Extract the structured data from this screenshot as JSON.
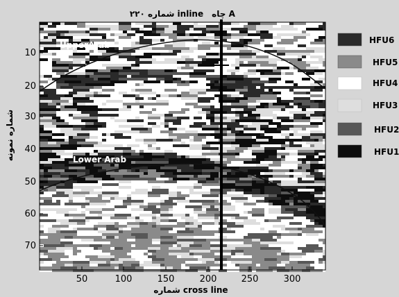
{
  "figure": {
    "top_title_left": "شماره ۲۲۰ inline",
    "top_title_right": "چاه A",
    "x_axis_label": "شماره cross line",
    "y_axis_label": "شماره نمونه",
    "x_ticks": [
      "50",
      "100",
      "150",
      "200",
      "250",
      "300"
    ],
    "y_ticks": [
      "10",
      "20",
      "30",
      "40",
      "50",
      "60",
      "70"
    ],
    "horizon_upper_label": "UpperArab",
    "horizon_lower_label": "Lower Arab"
  },
  "legend": [
    {
      "label": "HFU6",
      "color": "#2a2a2a"
    },
    {
      "label": "HFU5",
      "color": "#8a8a8a"
    },
    {
      "label": "HFU4",
      "color": "#ffffff"
    },
    {
      "label": "HFU3",
      "color": "#dedede"
    },
    {
      "label": "HFU2",
      "color": "#575757"
    },
    {
      "label": "HFU1",
      "color": "#0d0d0d"
    }
  ],
  "colors": {
    "background": "#d6d6d6",
    "well_line": "#000000",
    "horizon_line": "#111111"
  }
}
